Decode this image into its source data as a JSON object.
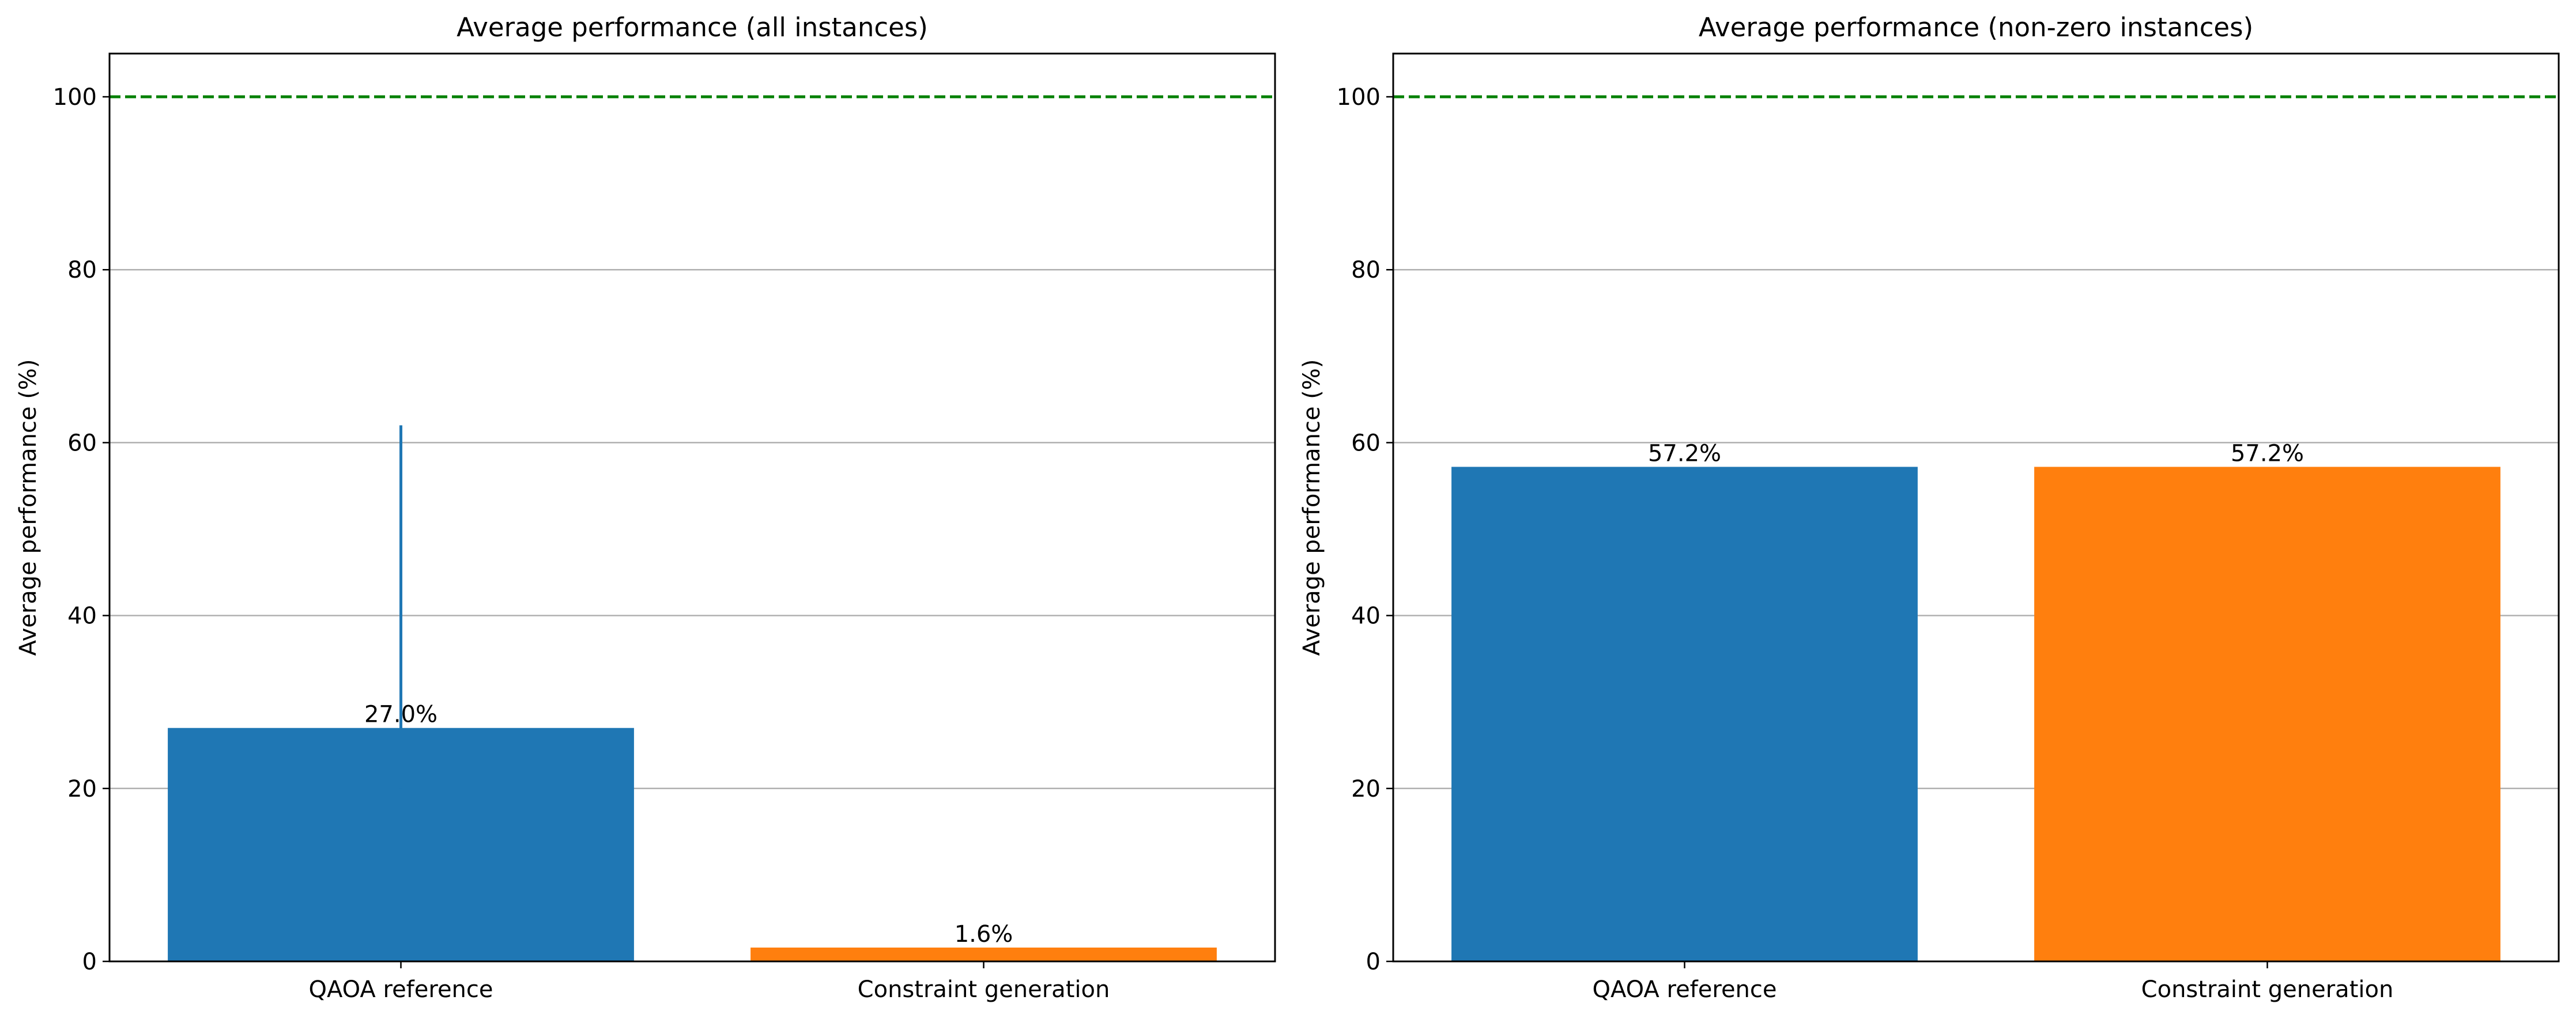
{
  "chart_data": [
    {
      "type": "bar",
      "title": "Average performance (all instances)",
      "xlabel": "",
      "ylabel": "Average performance (%)",
      "categories": [
        "QAOA reference",
        "Constraint generation"
      ],
      "values": [
        27.0,
        1.6
      ],
      "data_labels": [
        "27.0%",
        "1.6%"
      ],
      "error_bars": [
        {
          "low": 20.0,
          "high": 62.0
        },
        null
      ],
      "bar_colors": [
        "#1f77b4",
        "#ff7f0e"
      ],
      "ylim": [
        0,
        105
      ],
      "yticks": [
        0,
        20,
        40,
        60,
        80,
        100
      ],
      "ytick_labels": [
        "0",
        "20",
        "40",
        "60",
        "80",
        "100"
      ],
      "reference_line": {
        "y": 100,
        "color": "#008000",
        "style": "dashed"
      },
      "grid": "y"
    },
    {
      "type": "bar",
      "title": "Average performance (non-zero instances)",
      "xlabel": "",
      "ylabel": "Average performance (%)",
      "categories": [
        "QAOA reference",
        "Constraint generation"
      ],
      "values": [
        57.2,
        57.2
      ],
      "data_labels": [
        "57.2%",
        "57.2%"
      ],
      "error_bars": [
        null,
        null
      ],
      "bar_colors": [
        "#1f77b4",
        "#ff7f0e"
      ],
      "ylim": [
        0,
        105
      ],
      "yticks": [
        0,
        20,
        40,
        60,
        80,
        100
      ],
      "ytick_labels": [
        "0",
        "20",
        "40",
        "60",
        "80",
        "100"
      ],
      "reference_line": {
        "y": 100,
        "color": "#008000",
        "style": "dashed"
      },
      "grid": "y"
    }
  ]
}
